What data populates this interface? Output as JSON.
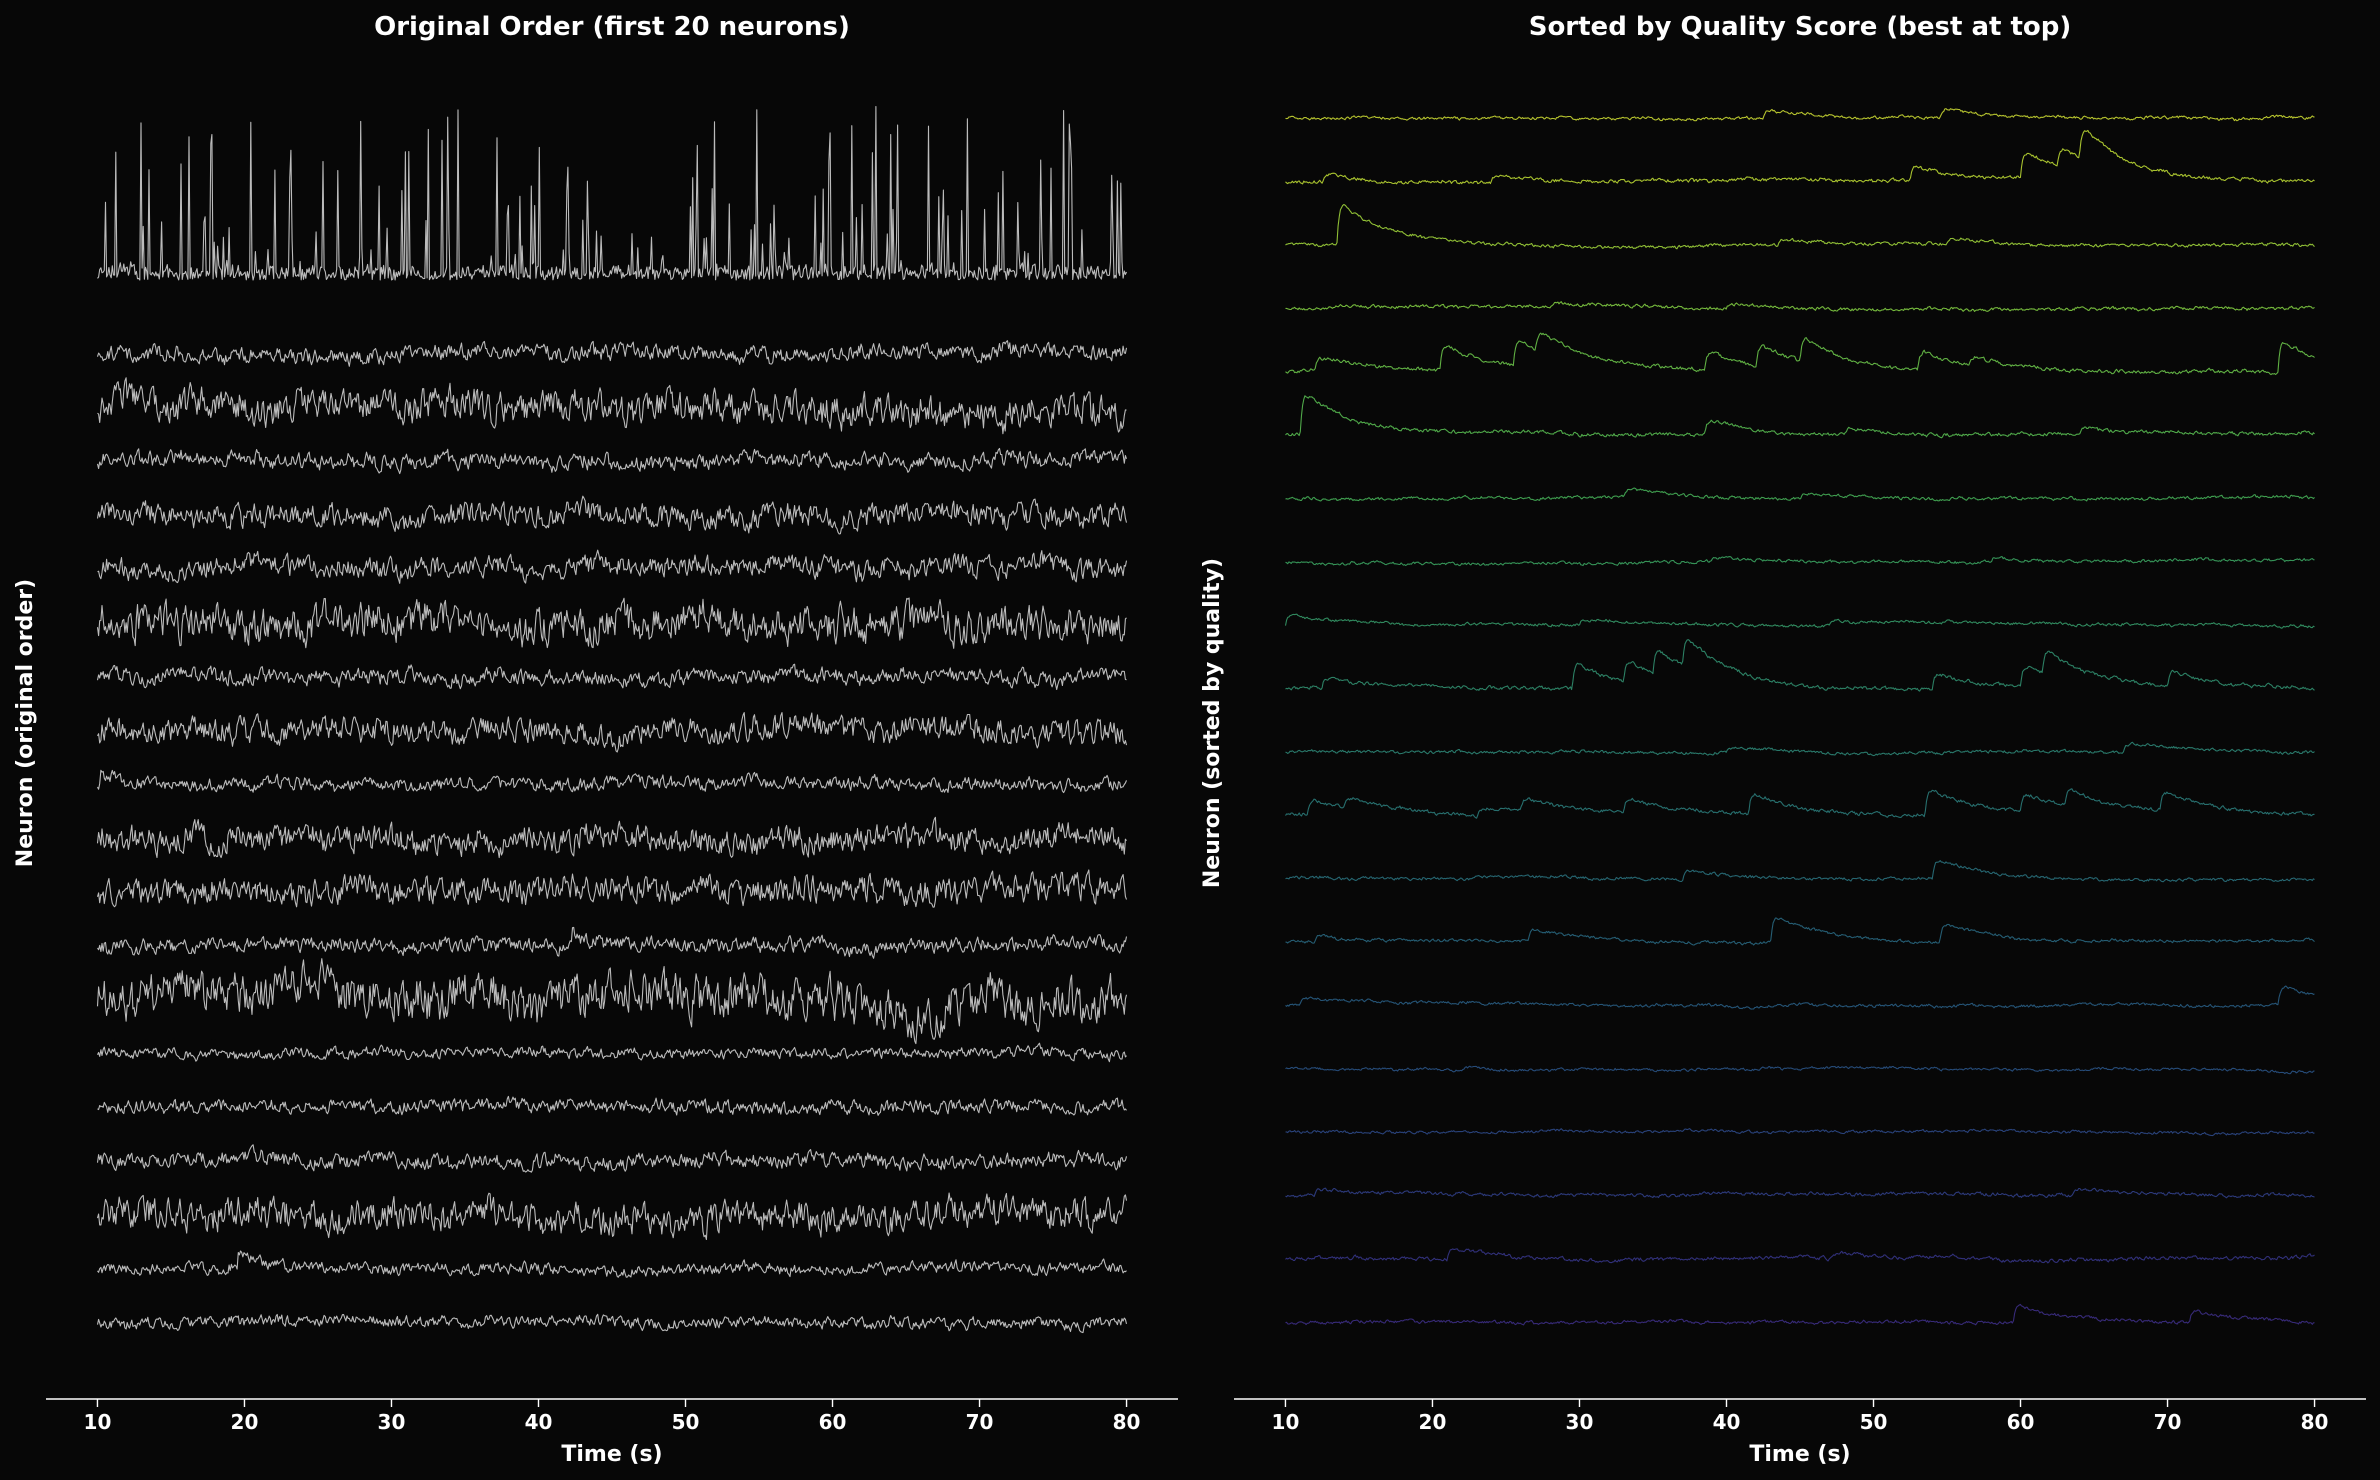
{
  "chart_data": [
    {
      "type": "line",
      "title": "Original Order (first 20 neurons)",
      "xlabel": "Time (s)",
      "ylabel": "Neuron (original order)",
      "xlim": [
        6.5,
        83.5
      ],
      "xticks": [
        10,
        20,
        30,
        40,
        50,
        60,
        70,
        80
      ],
      "x_range": [
        10,
        80
      ],
      "grid": false,
      "legend": "none",
      "trace_color": "#bbbbbb",
      "n_traces": 20,
      "series": [
        {
          "kind": "spiky",
          "amp": 1.0,
          "seed": 101,
          "events": []
        },
        {
          "kind": "noise",
          "amp": 0.42,
          "seed": 102,
          "events": []
        },
        {
          "kind": "noise",
          "amp": 0.85,
          "seed": 103,
          "events": []
        },
        {
          "kind": "noise",
          "amp": 0.42,
          "seed": 104,
          "events": []
        },
        {
          "kind": "noise",
          "amp": 0.6,
          "seed": 105,
          "events": []
        },
        {
          "kind": "noise",
          "amp": 0.55,
          "seed": 106,
          "events": []
        },
        {
          "kind": "noise",
          "amp": 0.95,
          "seed": 107,
          "events": []
        },
        {
          "kind": "noise",
          "amp": 0.4,
          "seed": 108,
          "events": []
        },
        {
          "kind": "noise",
          "amp": 0.65,
          "seed": 109,
          "events": []
        },
        {
          "kind": "noise",
          "amp": 0.35,
          "seed": 110,
          "events": [
            [
              10.2,
              0.6
            ]
          ]
        },
        {
          "kind": "noise",
          "amp": 0.7,
          "seed": 111,
          "events": []
        },
        {
          "kind": "noise",
          "amp": 0.7,
          "seed": 112,
          "events": []
        },
        {
          "kind": "noise",
          "amp": 0.38,
          "seed": 113,
          "events": [
            [
              42.3,
              0.7
            ]
          ]
        },
        {
          "kind": "noise",
          "amp": 1.1,
          "seed": 114,
          "events": []
        },
        {
          "kind": "noise",
          "amp": 0.28,
          "seed": 115,
          "events": []
        },
        {
          "kind": "noise",
          "amp": 0.35,
          "seed": 116,
          "events": []
        },
        {
          "kind": "noise",
          "amp": 0.4,
          "seed": 117,
          "events": []
        },
        {
          "kind": "noise",
          "amp": 0.8,
          "seed": 118,
          "events": []
        },
        {
          "kind": "noise",
          "amp": 0.3,
          "seed": 119,
          "events": [
            [
              19.5,
              0.9
            ]
          ]
        },
        {
          "kind": "noise",
          "amp": 0.3,
          "seed": 120,
          "events": []
        }
      ]
    },
    {
      "type": "line",
      "title": "Sorted by Quality Score (best at top)",
      "xlabel": "Time (s)",
      "ylabel": "Neuron (sorted by quality)",
      "xlim": [
        6.5,
        83.5
      ],
      "xticks": [
        10,
        20,
        30,
        40,
        50,
        60,
        70,
        80
      ],
      "x_range": [
        10,
        80
      ],
      "grid": false,
      "legend": "none",
      "colormap": "viridis",
      "n_traces": 20,
      "series": [
        {
          "kind": "calcium",
          "amp": 0.18,
          "seed": 201,
          "color": "#b5c22e",
          "events": [
            [
              42.5,
              0.4
            ],
            [
              54.5,
              0.5
            ]
          ]
        },
        {
          "kind": "calcium",
          "amp": 0.22,
          "seed": 202,
          "color": "#a8c22f",
          "events": [
            [
              12.5,
              0.5
            ],
            [
              24,
              0.4
            ],
            [
              52.5,
              0.9
            ],
            [
              60,
              1.6
            ],
            [
              62.5,
              1.2
            ],
            [
              64,
              2.0
            ]
          ]
        },
        {
          "kind": "calcium",
          "amp": 0.2,
          "seed": 203,
          "color": "#8fbe35",
          "events": [
            [
              13.5,
              2.6
            ],
            [
              43.5,
              0.4
            ],
            [
              55,
              0.4
            ]
          ]
        },
        {
          "kind": "calcium",
          "amp": 0.2,
          "seed": 204,
          "color": "#74b83c",
          "events": [
            [
              28,
              0.3
            ],
            [
              40,
              0.3
            ]
          ]
        },
        {
          "kind": "calcium",
          "amp": 0.22,
          "seed": 205,
          "color": "#60b043",
          "events": [
            [
              12,
              0.8
            ],
            [
              20.5,
              1.6
            ],
            [
              25.5,
              1.6
            ],
            [
              27,
              1.2
            ],
            [
              38.5,
              1.1
            ],
            [
              42,
              1.3
            ],
            [
              45,
              1.5
            ],
            [
              53,
              1.2
            ],
            [
              56.5,
              0.5
            ],
            [
              77.5,
              2.0
            ]
          ]
        },
        {
          "kind": "calcium",
          "amp": 0.22,
          "seed": 206,
          "color": "#4fa849",
          "events": [
            [
              11,
              2.6
            ],
            [
              38.5,
              0.9
            ],
            [
              48,
              0.4
            ],
            [
              64,
              0.4
            ]
          ]
        },
        {
          "kind": "calcium",
          "amp": 0.18,
          "seed": 207,
          "color": "#3f9e4f",
          "events": [
            [
              33,
              0.5
            ],
            [
              45,
              0.3
            ]
          ]
        },
        {
          "kind": "calcium",
          "amp": 0.18,
          "seed": 208,
          "color": "#359357",
          "events": [
            [
              39,
              0.3
            ],
            [
              58,
              0.3
            ],
            [
              80,
              0.3
            ]
          ]
        },
        {
          "kind": "calcium",
          "amp": 0.18,
          "seed": 209,
          "color": "#30895e",
          "events": [
            [
              10,
              0.6
            ],
            [
              30,
              0.3
            ],
            [
              47,
              0.3
            ]
          ]
        },
        {
          "kind": "calcium",
          "amp": 0.22,
          "seed": 210,
          "color": "#2c8064",
          "events": [
            [
              12.5,
              0.6
            ],
            [
              29.5,
              1.6
            ],
            [
              33,
              1.3
            ],
            [
              35,
              1.5
            ],
            [
              37,
              1.8
            ],
            [
              54,
              1.0
            ],
            [
              60,
              1.3
            ],
            [
              61.5,
              1.5
            ],
            [
              70,
              0.9
            ]
          ]
        },
        {
          "kind": "calcium",
          "amp": 0.18,
          "seed": 211,
          "color": "#29786a",
          "events": [
            [
              67,
              0.5
            ],
            [
              40,
              0.3
            ]
          ]
        },
        {
          "kind": "calcium",
          "amp": 0.22,
          "seed": 212,
          "color": "#276f6e",
          "events": [
            [
              11.5,
              0.9
            ],
            [
              14,
              0.6
            ],
            [
              23,
              0.5
            ],
            [
              26,
              0.8
            ],
            [
              33,
              0.9
            ],
            [
              41.5,
              1.3
            ],
            [
              53.5,
              1.6
            ],
            [
              60,
              1.0
            ],
            [
              63,
              1.1
            ],
            [
              69.5,
              1.2
            ]
          ]
        },
        {
          "kind": "calcium",
          "amp": 0.18,
          "seed": 213,
          "color": "#266671",
          "events": [
            [
              37,
              0.6
            ],
            [
              54,
              1.2
            ]
          ]
        },
        {
          "kind": "calcium",
          "amp": 0.18,
          "seed": 214,
          "color": "#255d73",
          "events": [
            [
              12,
              0.4
            ],
            [
              26.5,
              0.8
            ],
            [
              43,
              1.6
            ],
            [
              54.5,
              1.2
            ]
          ]
        },
        {
          "kind": "calcium",
          "amp": 0.18,
          "seed": 215,
          "color": "#255476",
          "events": [
            [
              11,
              0.4
            ],
            [
              77.5,
              1.2
            ]
          ]
        },
        {
          "kind": "calcium",
          "amp": 0.16,
          "seed": 216,
          "color": "#264b78",
          "events": [
            [
              22,
              0.2
            ]
          ]
        },
        {
          "kind": "calcium",
          "amp": 0.16,
          "seed": 217,
          "color": "#29427a",
          "events": []
        },
        {
          "kind": "calcium",
          "amp": 0.2,
          "seed": 218,
          "color": "#2c397a",
          "events": [
            [
              12,
              0.4
            ],
            [
              63.5,
              0.4
            ]
          ]
        },
        {
          "kind": "calcium",
          "amp": 0.22,
          "seed": 219,
          "color": "#31307a",
          "events": [
            [
              21,
              0.7
            ],
            [
              47,
              0.4
            ]
          ]
        },
        {
          "kind": "calcium",
          "amp": 0.2,
          "seed": 220,
          "color": "#372a78",
          "events": [
            [
              59.5,
              1.1
            ],
            [
              71.5,
              0.8
            ]
          ]
        }
      ]
    }
  ]
}
